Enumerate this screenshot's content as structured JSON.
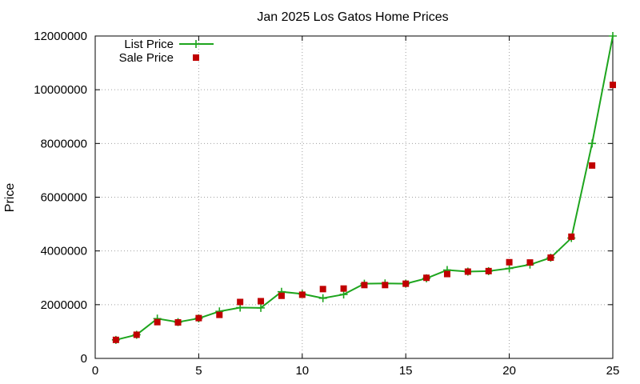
{
  "chart_data": {
    "type": "line",
    "title": "Jan 2025 Los Gatos Home Prices",
    "xlabel": "",
    "ylabel": "Price",
    "xlim": [
      0,
      25
    ],
    "ylim": [
      0,
      12000000
    ],
    "xticks": [
      0,
      5,
      10,
      15,
      20,
      25
    ],
    "yticks": [
      0,
      2000000,
      4000000,
      6000000,
      8000000,
      10000000,
      12000000
    ],
    "grid": true,
    "legend_position": "top-left",
    "x": [
      1,
      2,
      3,
      4,
      5,
      6,
      7,
      8,
      9,
      10,
      11,
      12,
      13,
      14,
      15,
      16,
      17,
      18,
      19,
      20,
      21,
      22,
      23,
      24,
      25
    ],
    "series": [
      {
        "name": "List Price",
        "style": "line-with-plus-markers",
        "color": "#1ea51e",
        "values": [
          690000,
          880000,
          1480000,
          1350000,
          1490000,
          1750000,
          1890000,
          1880000,
          2480000,
          2400000,
          2240000,
          2380000,
          2780000,
          2790000,
          2780000,
          2980000,
          3290000,
          3230000,
          3250000,
          3350000,
          3490000,
          3750000,
          4480000,
          8000000,
          12000000
        ]
      },
      {
        "name": "Sale Price",
        "style": "square-markers",
        "color": "#c00000",
        "values": [
          690000,
          880000,
          1350000,
          1340000,
          1500000,
          1620000,
          2100000,
          2130000,
          2330000,
          2370000,
          2580000,
          2600000,
          2730000,
          2730000,
          2780000,
          3000000,
          3140000,
          3230000,
          3250000,
          3580000,
          3570000,
          3750000,
          4530000,
          7180000,
          10180000
        ]
      }
    ]
  }
}
